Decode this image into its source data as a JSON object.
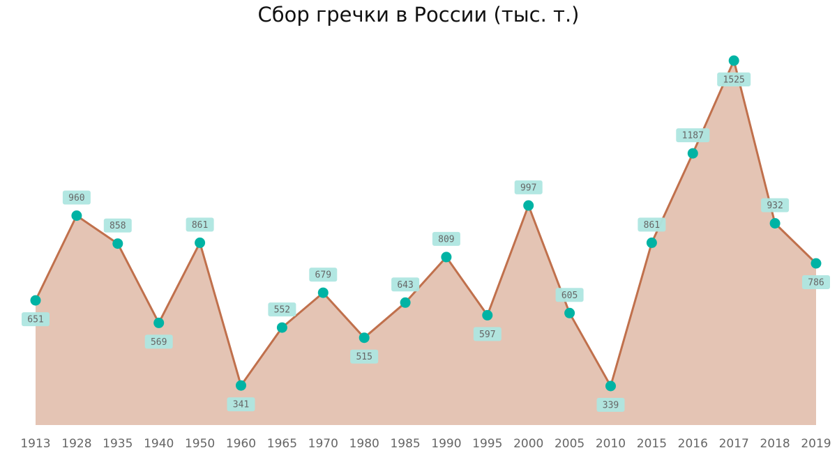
{
  "title": "Сбор гречки в России (тыс. т.)",
  "colors": {
    "area_fill": "#e4c4b4",
    "line": "#c0704c",
    "marker": "#00b3a4",
    "label_bg": "#aee6e0",
    "label_text": "#666666",
    "axis_text": "#666666"
  },
  "chart_data": {
    "type": "area",
    "title": "Сбор гречки в России (тыс. т.)",
    "xlabel": "",
    "ylabel": "",
    "categories": [
      "1913",
      "1928",
      "1935",
      "1940",
      "1950",
      "1960",
      "1965",
      "1970",
      "1980",
      "1985",
      "1990",
      "1995",
      "2000",
      "2005",
      "2010",
      "2015",
      "2016",
      "2017",
      "2018",
      "2019"
    ],
    "values": [
      651,
      960,
      858,
      569,
      861,
      341,
      552,
      679,
      515,
      643,
      809,
      597,
      997,
      605,
      339,
      861,
      1187,
      1525,
      932,
      786
    ],
    "label_position": [
      "below",
      "above",
      "above",
      "below",
      "above",
      "below",
      "above",
      "above",
      "below",
      "above",
      "above",
      "below",
      "above",
      "above",
      "below",
      "above",
      "above",
      "below",
      "above",
      "below"
    ],
    "ylim": [
      197,
      1600
    ],
    "grid": false,
    "legend": false,
    "data_labels": true
  }
}
